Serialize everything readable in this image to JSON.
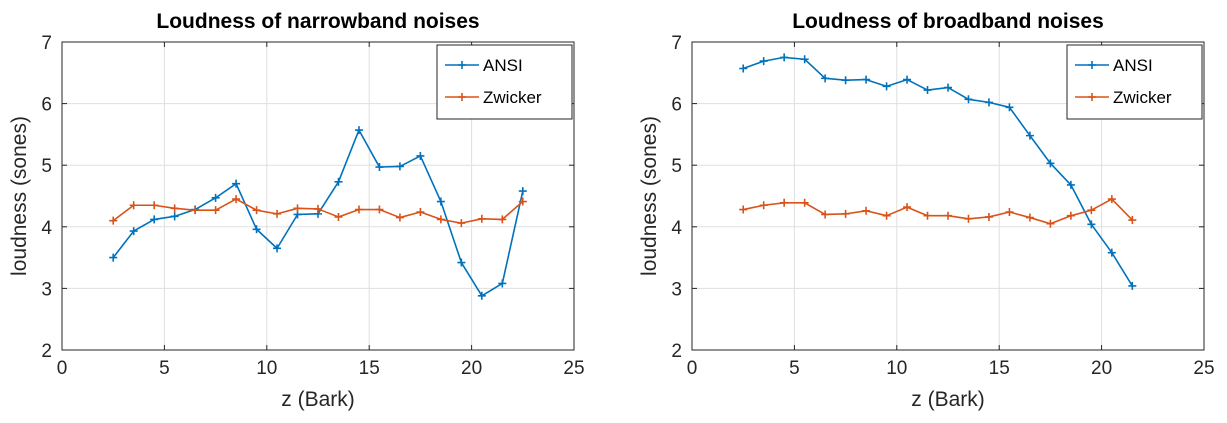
{
  "chart_data": [
    {
      "type": "line",
      "title": "Loudness of narrowband noises",
      "xlabel": "z (Bark)",
      "ylabel": "loudness (sones)",
      "xlim": [
        0,
        25
      ],
      "ylim": [
        2,
        7
      ],
      "xticks": [
        0,
        5,
        10,
        15,
        20,
        25
      ],
      "yticks": [
        2,
        3,
        4,
        5,
        6,
        7
      ],
      "grid": true,
      "legend_position": "top-right",
      "series": [
        {
          "name": "ANSI",
          "color": "#0072BD",
          "marker": "+",
          "x": [
            2.5,
            3.5,
            4.5,
            5.5,
            6.5,
            7.5,
            8.5,
            9.5,
            10.5,
            11.5,
            12.5,
            13.5,
            14.5,
            15.5,
            16.5,
            17.5,
            18.5,
            19.5,
            20.5,
            21.5,
            22.5
          ],
          "y": [
            3.5,
            3.93,
            4.12,
            4.17,
            4.28,
            4.47,
            4.7,
            3.96,
            3.65,
            4.2,
            4.21,
            4.73,
            5.57,
            4.97,
            4.98,
            5.15,
            4.41,
            3.42,
            2.88,
            3.08,
            4.58
          ]
        },
        {
          "name": "Zwicker",
          "color": "#D95319",
          "marker": "+",
          "x": [
            2.5,
            3.5,
            4.5,
            5.5,
            6.5,
            7.5,
            8.5,
            9.5,
            10.5,
            11.5,
            12.5,
            13.5,
            14.5,
            15.5,
            16.5,
            17.5,
            18.5,
            19.5,
            20.5,
            21.5,
            22.5
          ],
          "y": [
            4.1,
            4.35,
            4.35,
            4.3,
            4.27,
            4.27,
            4.45,
            4.27,
            4.21,
            4.3,
            4.29,
            4.16,
            4.28,
            4.28,
            4.15,
            4.24,
            4.12,
            4.06,
            4.13,
            4.12,
            4.41
          ]
        }
      ]
    },
    {
      "type": "line",
      "title": "Loudness of broadband noises",
      "xlabel": "z (Bark)",
      "ylabel": "loudness (sones)",
      "xlim": [
        0,
        25
      ],
      "ylim": [
        2,
        7
      ],
      "xticks": [
        0,
        5,
        10,
        15,
        20,
        25
      ],
      "yticks": [
        2,
        3,
        4,
        5,
        6,
        7
      ],
      "grid": true,
      "legend_position": "top-right",
      "series": [
        {
          "name": "ANSI",
          "color": "#0072BD",
          "marker": "+",
          "x": [
            2.5,
            3.5,
            4.5,
            5.5,
            6.5,
            7.5,
            8.5,
            9.5,
            10.5,
            11.5,
            12.5,
            13.5,
            14.5,
            15.5,
            16.5,
            17.5,
            18.5,
            19.5,
            20.5,
            21.5
          ],
          "y": [
            6.57,
            6.69,
            6.75,
            6.72,
            6.41,
            6.38,
            6.39,
            6.28,
            6.39,
            6.22,
            6.26,
            6.07,
            6.02,
            5.94,
            5.48,
            5.03,
            4.68,
            4.04,
            3.58,
            3.04
          ]
        },
        {
          "name": "Zwicker",
          "color": "#D95319",
          "marker": "+",
          "x": [
            2.5,
            3.5,
            4.5,
            5.5,
            6.5,
            7.5,
            8.5,
            9.5,
            10.5,
            11.5,
            12.5,
            13.5,
            14.5,
            15.5,
            16.5,
            17.5,
            18.5,
            19.5,
            20.5,
            21.5
          ],
          "y": [
            4.28,
            4.35,
            4.39,
            4.39,
            4.2,
            4.21,
            4.26,
            4.18,
            4.32,
            4.18,
            4.18,
            4.13,
            4.16,
            4.24,
            4.15,
            4.05,
            4.18,
            4.27,
            4.45,
            4.11
          ]
        }
      ]
    }
  ]
}
